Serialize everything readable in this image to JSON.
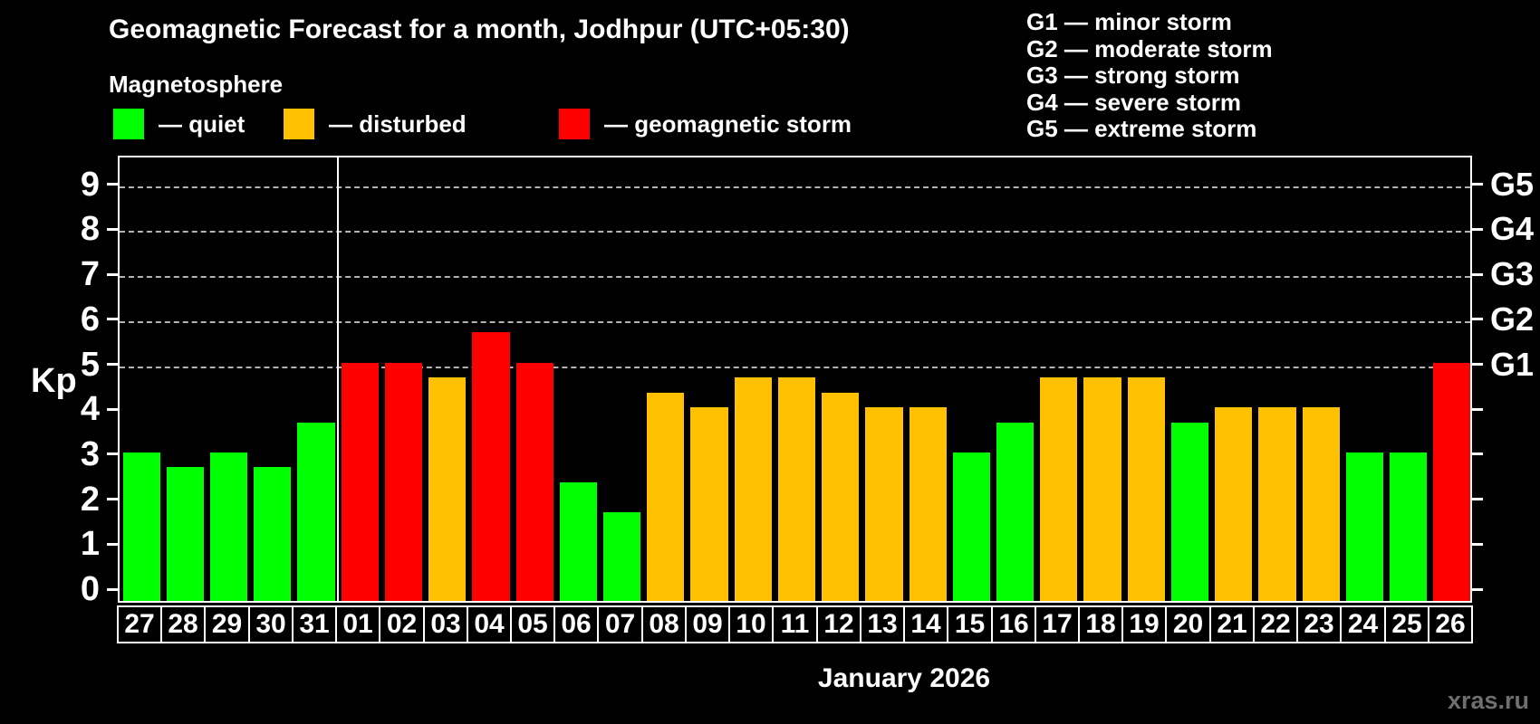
{
  "title": "Geomagnetic Forecast for a month, Jodhpur (UTC+05:30)",
  "subtitle": "Magnetosphere",
  "watermark": "xras.ru",
  "status_legend": [
    {
      "status": "quiet",
      "label": "— quiet",
      "color": "#00ff00"
    },
    {
      "status": "disturbed",
      "label": "— disturbed",
      "color": "#ffc000"
    },
    {
      "status": "storm",
      "label": "— geomagnetic storm",
      "color": "#ff0000"
    }
  ],
  "g_scale_legend": [
    "G1 — minor storm",
    "G2 — moderate storm",
    "G3 — strong storm",
    "G4 — severe storm",
    "G5 — extreme storm"
  ],
  "chart_data": {
    "type": "bar",
    "title": "Geomagnetic Forecast for a month, Jodhpur (UTC+05:30)",
    "xlabel": "January 2026",
    "ylabel": "Kp",
    "ylim": [
      0,
      9
    ],
    "yticks": [
      0,
      1,
      2,
      3,
      4,
      5,
      6,
      7,
      8,
      9
    ],
    "gridlines_at_kp": [
      5,
      6,
      7,
      8,
      9
    ],
    "grid_style": "horizontal dashed gray at Kp 5–9 only",
    "right_axis_labels": [
      {
        "label": "G1",
        "kp": 5
      },
      {
        "label": "G2",
        "kp": 6
      },
      {
        "label": "G3",
        "kp": 7
      },
      {
        "label": "G4",
        "kp": 8
      },
      {
        "label": "G5",
        "kp": 9
      }
    ],
    "legend_position": "top",
    "month_separator_after_index": 4,
    "categories": [
      "27",
      "28",
      "29",
      "30",
      "31",
      "01",
      "02",
      "03",
      "04",
      "05",
      "06",
      "07",
      "08",
      "09",
      "10",
      "11",
      "12",
      "13",
      "14",
      "15",
      "16",
      "17",
      "18",
      "19",
      "20",
      "21",
      "22",
      "23",
      "24",
      "25",
      "26"
    ],
    "values": [
      3.0,
      2.67,
      3.0,
      2.67,
      3.67,
      5.0,
      5.0,
      4.67,
      5.67,
      5.0,
      2.33,
      1.67,
      4.33,
      4.0,
      4.67,
      4.67,
      4.33,
      4.0,
      4.0,
      3.0,
      3.67,
      4.67,
      4.67,
      4.67,
      3.67,
      4.0,
      4.0,
      4.0,
      3.0,
      3.0,
      5.0
    ],
    "statuses": [
      "quiet",
      "quiet",
      "quiet",
      "quiet",
      "quiet",
      "storm",
      "storm",
      "disturbed",
      "storm",
      "storm",
      "quiet",
      "quiet",
      "disturbed",
      "disturbed",
      "disturbed",
      "disturbed",
      "disturbed",
      "disturbed",
      "disturbed",
      "quiet",
      "quiet",
      "disturbed",
      "disturbed",
      "disturbed",
      "quiet",
      "disturbed",
      "disturbed",
      "disturbed",
      "quiet",
      "quiet",
      "storm"
    ]
  }
}
